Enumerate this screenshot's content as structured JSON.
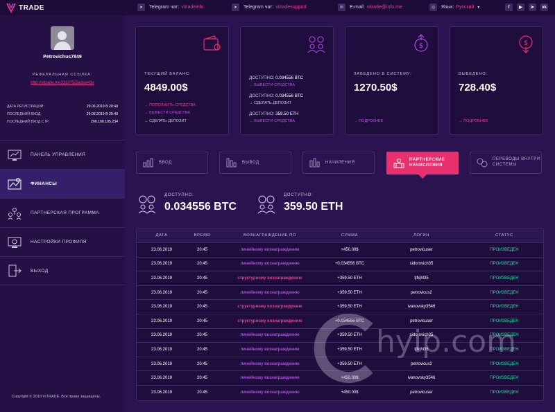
{
  "brand": {
    "name": "TRADE"
  },
  "topbar": {
    "telegram_chat_1_label": "Telegram чат:",
    "telegram_chat_1_value": "vitradeinfo",
    "telegram_chat_2_label": "Telegram чат:",
    "telegram_chat_2_value": "vitradesupport",
    "email_label": "E-mail:",
    "email_value": "vitrade@info.me",
    "language_label": "Язык:",
    "language_value": "Русский"
  },
  "sidebar": {
    "username": "Petrovichus7849",
    "ref_label": "РЕФЕРАЛЬНАЯ ССЫЛКА:",
    "ref_link": "http://vitrade.me3310?5i3adsw43v",
    "info": [
      {
        "label": "ДАТА РЕГИСТРАЦИИ:",
        "value": "29.06.2019 В 20:40"
      },
      {
        "label": "ПОСЛЕДНИЙ ВХОД:",
        "value": "29.06.2019 В 20:40"
      },
      {
        "label": "ПОСЛЕДНИЙ ВХОД С IP:",
        "value": "200.100.105.234"
      }
    ],
    "menu": [
      {
        "label": "ПАНЕЛЬ УПРАВЛЕНИЯ",
        "icon": "dashboard-icon"
      },
      {
        "label": "ФИНАНСЫ",
        "icon": "finance-icon"
      },
      {
        "label": "ПАРТНЕРСКАЯ ПРОГРАММА",
        "icon": "partners-icon"
      },
      {
        "label": "НАСТРОЙКИ ПРОФИЛЯ",
        "icon": "settings-icon"
      },
      {
        "label": "ВЫХОД",
        "icon": "logout-icon"
      }
    ],
    "copyright": "Copyright © 2019 VITRADE. Все права защищены."
  },
  "cards": {
    "balance": {
      "label": "ТЕКУЩИЙ БАЛАНС:",
      "value": "4849.00$",
      "link1": "→ ПОПОЛНИТЬ СРЕДСТВА",
      "link2": "→ ВЫВЕСТИ СРЕДСТВА",
      "link3": "→ СДЕЛАТЬ ДЕПОЗИТ"
    },
    "available": {
      "line1_label": "ДОСТУПНО:",
      "line1_value": "0.034556 BTC",
      "line1_link": "→ ВЫВЕСТИ СРЕДСТВА",
      "line2_label": "ДОСТУПНО:",
      "line2_value": "0.034556 BTC",
      "line2_link": "→ СДЕЛАТЬ ДЕПОЗИТ",
      "line3_label": "ДОСТУПНО:",
      "line3_value": "359.50 ETH",
      "line3_link": "→ ВЫВЕСТИ СРЕДСТВА"
    },
    "invested": {
      "label": "ЗАВЕДЕНО В СИСТЕМУ:",
      "value": "1270.50$",
      "link": "→ ПОДРОБНЕЕ"
    },
    "withdrawn": {
      "label": "ВЫВЕДЕНО:",
      "value": "728.40$",
      "link": "→ ПОДРОБНЕЕ"
    }
  },
  "tabs": [
    {
      "label": "ВВОД"
    },
    {
      "label": "ВЫВОД"
    },
    {
      "label": "НАЧИЛЕНИЯ"
    },
    {
      "label1": "ПАРТНЕРСКИЕ",
      "label2": "НАЧИСЛЕНИЯ"
    },
    {
      "label1": "ПЕРЕВОДЫ ВНУТРИ",
      "label2": "СИСТЕМЫ"
    }
  ],
  "balances": [
    {
      "label": "ДОСТУПНО:",
      "value": "0.034556 BTC"
    },
    {
      "label": "ДОСТУПНО:",
      "value": "359.50 ETH"
    }
  ],
  "table": {
    "headers": [
      "ДАТА",
      "ВРЕМЯ",
      "ВОЗНАГРАЖДЕНИЕ ПО",
      "СУММА",
      "ЛОГИН",
      "СТАТУС"
    ],
    "rows": [
      {
        "date": "23.06.2019",
        "time": "20:45",
        "reward": "линейному вознаграждению",
        "type": "linear",
        "sum": "+450.00$",
        "login": "petrovicuser",
        "status": "ПРОИЗВЕДЕН"
      },
      {
        "date": "23.06.2019",
        "time": "20:45",
        "reward": "линейному вознаграждению",
        "type": "linear",
        "sum": "+0.034556 BTC",
        "login": "sidorovich35",
        "status": "ПРОИЗВЕДЕН"
      },
      {
        "date": "23.06.2019",
        "time": "20:45",
        "reward": "структурному вознаграждению",
        "type": "struct",
        "sum": "+359.50 ETH",
        "login": "tjfkjhl35",
        "status": "ПРОИЗВЕДЕН"
      },
      {
        "date": "23.06.2019",
        "time": "20:45",
        "reward": "линейному вознаграждению",
        "type": "linear",
        "sum": "+359.50 ETH",
        "login": "petrovicus2",
        "status": "ПРОИЗВЕДЕН"
      },
      {
        "date": "23.06.2019",
        "time": "20:45",
        "reward": "структурному вознаграждению",
        "type": "struct",
        "sum": "+359.50 ETH",
        "login": "ivanovsky3546",
        "status": "ПРОИЗВЕДЕН"
      },
      {
        "date": "23.06.2019",
        "time": "20:45",
        "reward": "структурному вознаграждению",
        "type": "struct",
        "sum": "+0.034556 BTC",
        "login": "petrovicuser",
        "status": "ПРОИЗВЕДЕН"
      },
      {
        "date": "23.06.2019",
        "time": "20:45",
        "reward": "линейному вознаграждению",
        "type": "linear",
        "sum": "+359.50 ETH",
        "login": "sidorovich35",
        "status": "ПРОИЗВЕДЕН"
      },
      {
        "date": "23.06.2019",
        "time": "20:45",
        "reward": "линейному вознаграждению",
        "type": "linear",
        "sum": "+359.50 ETH",
        "login": "tjfkjhl35",
        "status": "ПРОИЗВЕДЕН"
      },
      {
        "date": "23.06.2019",
        "time": "20:45",
        "reward": "линейному вознаграждению",
        "type": "linear",
        "sum": "+359.50 ETH",
        "login": "petrovicus2",
        "status": "ПРОИЗВЕДЕН"
      },
      {
        "date": "23.06.2019",
        "time": "20:45",
        "reward": "линейному вознаграждению",
        "type": "linear",
        "sum": "+450.00$",
        "login": "ivanovsky3546",
        "status": "ПРОИЗВЕДЕН"
      },
      {
        "date": "23.06.2019",
        "time": "20:45",
        "reward": "линейному вознаграждению",
        "type": "linear",
        "sum": "+450.00$",
        "login": "petrovicuser",
        "status": "ПРОИЗВЕДЕН"
      }
    ]
  },
  "watermark": {
    "text": "hyip.com"
  },
  "colors": {
    "accent_pink": "#e8306f",
    "accent_purple": "#b54ae6",
    "status_green": "#2fd6a0",
    "bg": "#2a1350"
  }
}
